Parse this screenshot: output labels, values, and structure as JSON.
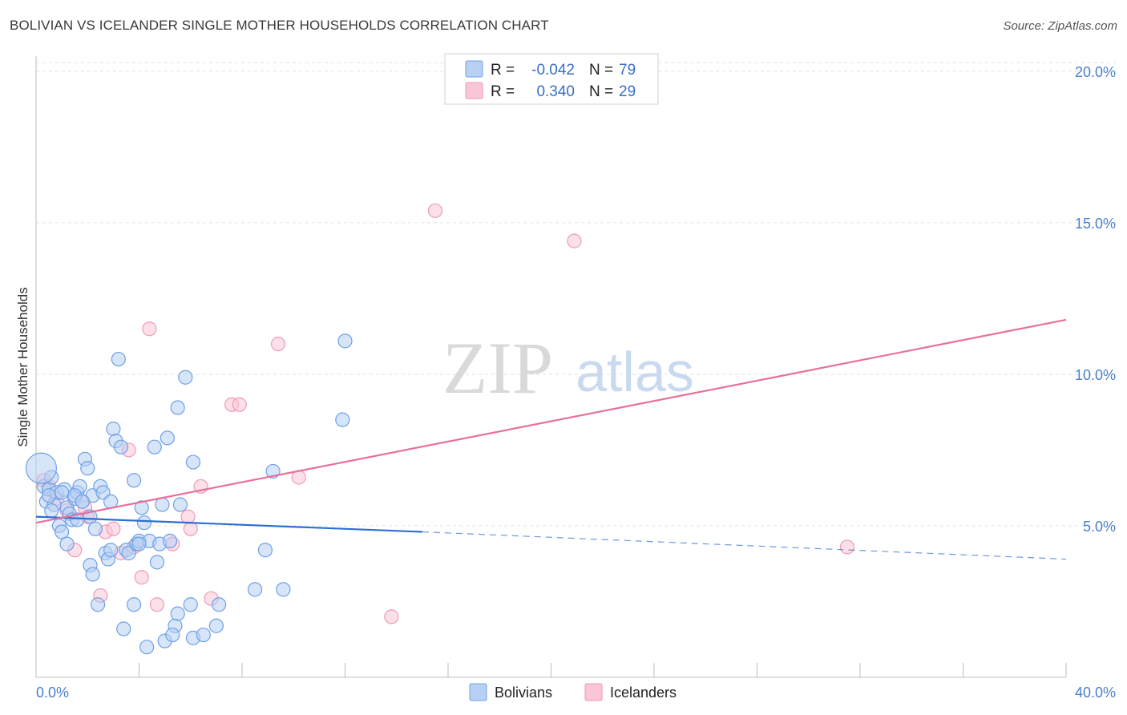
{
  "chart_data": {
    "type": "scatter",
    "title": "BOLIVIAN VS ICELANDER SINGLE MOTHER HOUSEHOLDS CORRELATION CHART",
    "source": "Source: ZipAtlas.com",
    "xlabel": "",
    "ylabel": "Single Mother Households",
    "xlim": [
      0,
      40
    ],
    "ylim": [
      0,
      20.5
    ],
    "x_tick_labels": [
      "0.0%",
      "40.0%"
    ],
    "y_ticks": [
      5,
      10,
      15,
      20
    ],
    "y_tick_labels": [
      "5.0%",
      "10.0%",
      "15.0%",
      "20.0%"
    ],
    "watermark": {
      "zip": "ZIP",
      "atlas": "atlas"
    },
    "legend": {
      "rows": [
        {
          "r_label": "R =",
          "r_value": "-0.042",
          "n_label": "N =",
          "n_value": "79"
        },
        {
          "r_label": "R =",
          "r_value": "0.340",
          "n_label": "N =",
          "n_value": "29"
        }
      ]
    },
    "series": [
      {
        "name": "Bolivians",
        "color": "#6fa0e8",
        "fill": "#b7d0f3",
        "trend": {
          "x0": 0,
          "y0": 5.3,
          "x1": 15,
          "y1": 4.8,
          "dash_x1": 40,
          "dash_y1": 3.9,
          "color": "#2d6fd0"
        },
        "points": [
          [
            0.3,
            6.3
          ],
          [
            0.5,
            6.2
          ],
          [
            0.4,
            5.8
          ],
          [
            0.6,
            6.6
          ],
          [
            0.7,
            5.7
          ],
          [
            0.8,
            6.1
          ],
          [
            0.9,
            5.0
          ],
          [
            1.0,
            4.8
          ],
          [
            1.1,
            6.2
          ],
          [
            1.2,
            5.6
          ],
          [
            0.5,
            6.0
          ],
          [
            1.3,
            5.4
          ],
          [
            1.4,
            5.2
          ],
          [
            1.5,
            5.9
          ],
          [
            1.6,
            6.1
          ],
          [
            1.7,
            6.3
          ],
          [
            1.8,
            5.8
          ],
          [
            1.9,
            7.2
          ],
          [
            2.0,
            6.9
          ],
          [
            2.1,
            5.3
          ],
          [
            2.2,
            6.0
          ],
          [
            2.3,
            4.9
          ],
          [
            2.5,
            6.3
          ],
          [
            2.6,
            6.1
          ],
          [
            2.7,
            4.1
          ],
          [
            2.8,
            3.9
          ],
          [
            2.9,
            5.8
          ],
          [
            3.0,
            8.2
          ],
          [
            3.1,
            7.8
          ],
          [
            3.2,
            10.5
          ],
          [
            3.3,
            7.6
          ],
          [
            3.5,
            4.2
          ],
          [
            3.6,
            4.1
          ],
          [
            3.8,
            6.5
          ],
          [
            3.9,
            4.4
          ],
          [
            4.0,
            4.5
          ],
          [
            4.1,
            5.6
          ],
          [
            4.2,
            5.1
          ],
          [
            4.4,
            4.5
          ],
          [
            4.6,
            7.6
          ],
          [
            4.8,
            4.4
          ],
          [
            4.9,
            5.7
          ],
          [
            5.1,
            7.9
          ],
          [
            5.2,
            4.5
          ],
          [
            5.5,
            8.9
          ],
          [
            5.8,
            9.9
          ],
          [
            6.1,
            7.1
          ],
          [
            1.2,
            4.4
          ],
          [
            1.5,
            6.0
          ],
          [
            1.8,
            5.8
          ],
          [
            2.1,
            3.7
          ],
          [
            2.2,
            3.4
          ],
          [
            2.4,
            2.4
          ],
          [
            3.4,
            1.6
          ],
          [
            3.8,
            2.4
          ],
          [
            4.3,
            1.0
          ],
          [
            4.7,
            3.8
          ],
          [
            5.0,
            1.2
          ],
          [
            5.4,
            1.7
          ],
          [
            5.5,
            2.1
          ],
          [
            5.3,
            1.4
          ],
          [
            6.0,
            2.4
          ],
          [
            6.1,
            1.3
          ],
          [
            6.5,
            1.4
          ],
          [
            7.0,
            1.7
          ],
          [
            7.1,
            2.4
          ],
          [
            8.5,
            2.9
          ],
          [
            8.9,
            4.2
          ],
          [
            9.2,
            6.8
          ],
          [
            9.6,
            2.9
          ],
          [
            12.0,
            11.1
          ],
          [
            11.9,
            8.5
          ],
          [
            0.2,
            6.9
          ],
          [
            0.6,
            5.5
          ],
          [
            1.0,
            6.1
          ],
          [
            1.6,
            5.2
          ],
          [
            2.9,
            4.2
          ],
          [
            4.0,
            4.4
          ],
          [
            5.6,
            5.7
          ]
        ]
      },
      {
        "name": "Icelanders",
        "color": "#f09ab5",
        "fill": "#f8c6d6",
        "trend": {
          "x0": 0,
          "y0": 5.1,
          "x1": 40,
          "y1": 11.8,
          "color": "#e8709a"
        },
        "points": [
          [
            0.3,
            6.5
          ],
          [
            0.5,
            6.3
          ],
          [
            0.8,
            5.9
          ],
          [
            1.2,
            5.5
          ],
          [
            1.5,
            4.2
          ],
          [
            1.9,
            5.6
          ],
          [
            2.0,
            5.3
          ],
          [
            2.5,
            2.7
          ],
          [
            2.7,
            4.8
          ],
          [
            3.0,
            4.9
          ],
          [
            3.3,
            4.1
          ],
          [
            3.6,
            7.5
          ],
          [
            3.8,
            4.3
          ],
          [
            4.1,
            3.3
          ],
          [
            4.4,
            11.5
          ],
          [
            4.7,
            2.4
          ],
          [
            5.3,
            4.4
          ],
          [
            5.9,
            5.3
          ],
          [
            6.0,
            4.9
          ],
          [
            6.4,
            6.3
          ],
          [
            6.8,
            2.6
          ],
          [
            7.6,
            9.0
          ],
          [
            7.9,
            9.0
          ],
          [
            9.4,
            11.0
          ],
          [
            10.2,
            6.6
          ],
          [
            13.8,
            2.0
          ],
          [
            15.5,
            15.4
          ],
          [
            20.9,
            14.4
          ],
          [
            31.5,
            4.3
          ]
        ]
      }
    ]
  }
}
